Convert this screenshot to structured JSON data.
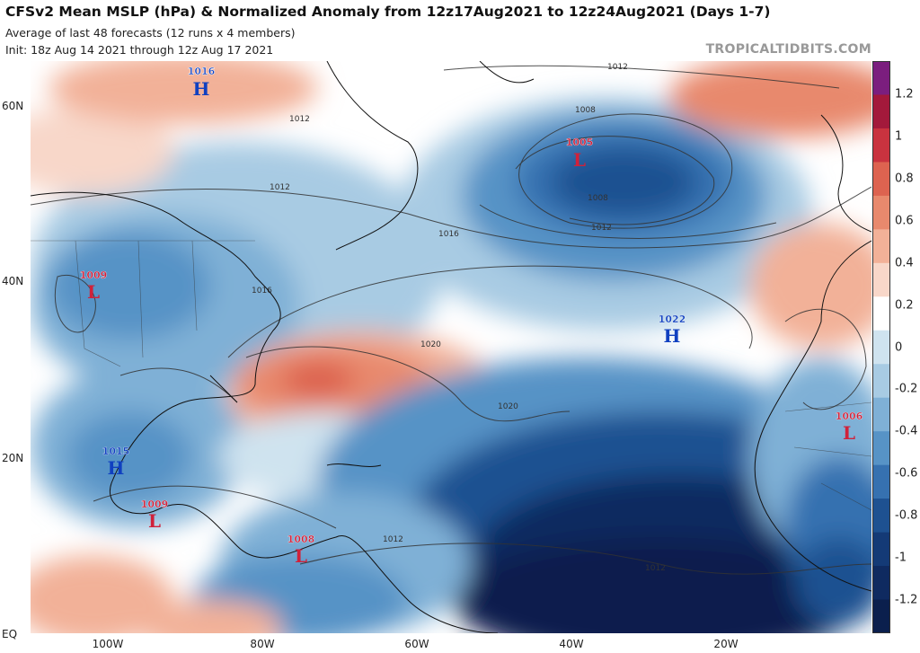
{
  "header": {
    "title": "CFSv2 Mean MSLP (hPa) & Normalized Anomaly from 12z17Aug2021 to 12z24Aug2021 (Days 1-7)",
    "subtitle1": "Average of last 48 forecasts (12 runs x 4 members)",
    "subtitle2": "Init: 18z Aug 14 2021 through 12z Aug 17 2021",
    "brand": "TROPICALTIDBITS.COM"
  },
  "axes": {
    "lat_labels": [
      "60N",
      "40N",
      "20N",
      "EQ"
    ],
    "lon_labels": [
      "100W",
      "80W",
      "60W",
      "40W",
      "20W"
    ]
  },
  "colorbar": {
    "ticks": [
      "1.2",
      "1",
      "0.8",
      "0.6",
      "0.4",
      "0.2",
      "0",
      "-0.2",
      "-0.4",
      "-0.6",
      "-0.8",
      "-1",
      "-1.2"
    ],
    "colors": [
      "#7b1e7e",
      "#a3193b",
      "#c9333f",
      "#dd6350",
      "#e8896d",
      "#f2b198",
      "#f8d7c9",
      "#ffffff",
      "#cfe3ef",
      "#a8cbe3",
      "#7fb0d6",
      "#5793c6",
      "#3671b0",
      "#1e5191",
      "#143a76",
      "#0f2a60",
      "#0b1f4d"
    ]
  },
  "pressure_centers": [
    {
      "type": "H",
      "value": "1016",
      "color": "#1040c0"
    },
    {
      "type": "L",
      "value": "1005",
      "color": "#d0213a"
    },
    {
      "type": "L",
      "value": "1009",
      "color": "#d0213a"
    },
    {
      "type": "H",
      "value": "1022",
      "color": "#1040c0"
    },
    {
      "type": "L",
      "value": "1006",
      "color": "#d0213a"
    },
    {
      "type": "H",
      "value": "1015",
      "color": "#1040c0"
    },
    {
      "type": "L",
      "value": "1009",
      "color": "#d0213a"
    },
    {
      "type": "L",
      "value": "1008",
      "color": "#d0213a"
    }
  ],
  "isobar_labels": [
    "1012",
    "1008",
    "1008",
    "1012",
    "1012",
    "1016",
    "1016",
    "1020",
    "1020",
    "1012",
    "1012",
    "1012"
  ]
}
